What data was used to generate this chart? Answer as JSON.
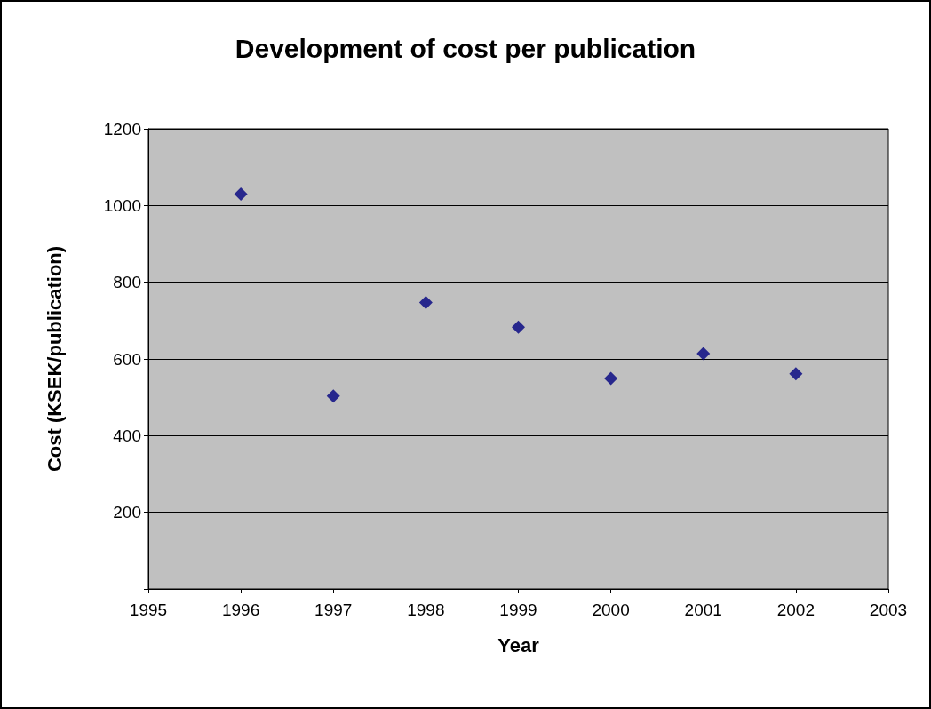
{
  "chart_data": {
    "type": "scatter",
    "title": "Development of cost per publication",
    "xlabel": "Year",
    "ylabel": "Cost (KSEK/publication)",
    "x": [
      1996,
      1997,
      1998,
      1999,
      2000,
      2001,
      2002
    ],
    "values": [
      1030,
      503,
      747,
      683,
      549,
      614,
      561
    ],
    "color": "#000080",
    "marker": "diamond",
    "xlim": [
      1995,
      2003
    ],
    "xticks": [
      1995,
      1996,
      1997,
      1998,
      1999,
      2000,
      2001,
      2002,
      2003
    ],
    "ylim": [
      0,
      1200
    ],
    "yticks": [
      {
        "value": 0,
        "label": null
      },
      200,
      400,
      600,
      800,
      1000,
      1200
    ],
    "grid": "y"
  }
}
